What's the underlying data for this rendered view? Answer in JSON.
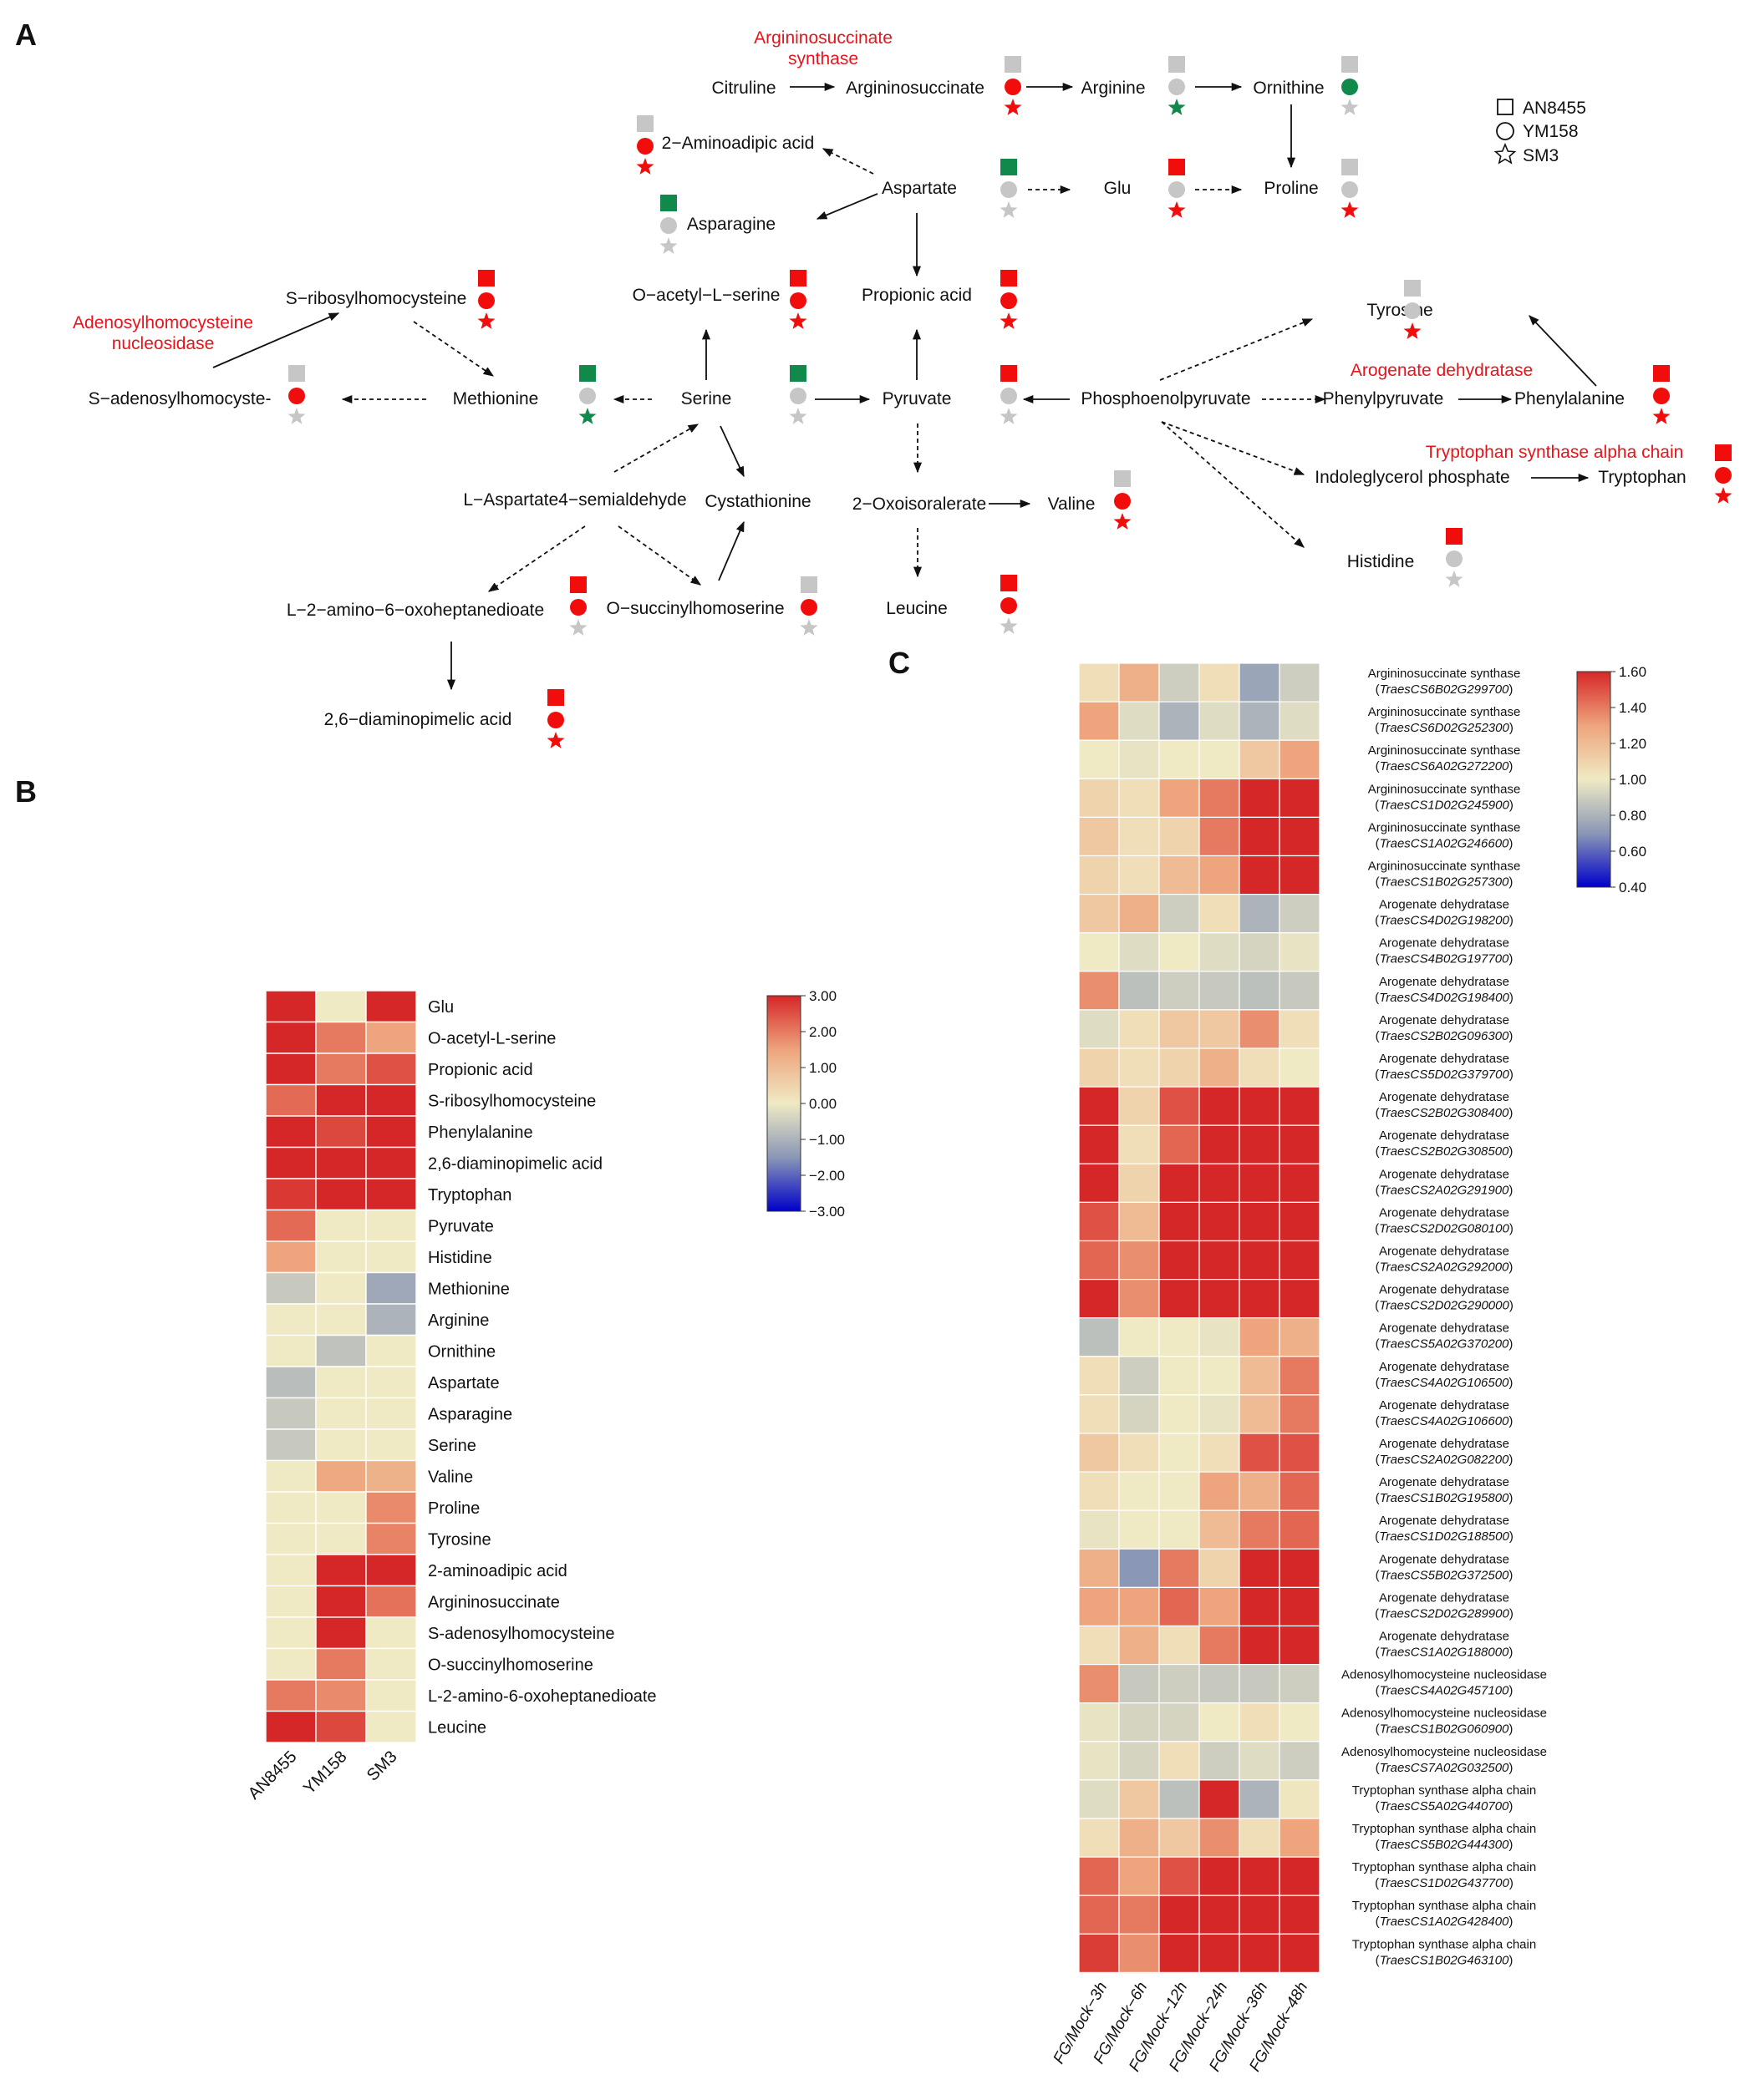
{
  "panel_labels": {
    "a": "A",
    "b": "B",
    "c": "C"
  },
  "colors": {
    "up": "#f20d0d",
    "down": "#10894a",
    "ns": "#c6c6c6",
    "enzyme": "#e8141b"
  },
  "pathway": {
    "nodes": {
      "citruline": "Citruline",
      "argininosuccinate": "Argininosuccinate",
      "arginine": "Arginine",
      "ornithine": "Ornithine",
      "aminoadipic": "2−Aminoadipic acid",
      "aspartate": "Aspartate",
      "glu": "Glu",
      "proline": "Proline",
      "asparagine": "Asparagine",
      "sribosyl": "S−ribosylhomocysteine",
      "oacetyl": "O−acetyl−L−serine",
      "propionic": "Propionic acid",
      "tyrosine": "Tyrosine",
      "sadenosyl": "S−adenosylhomocyste-",
      "methionine": "Methionine",
      "serine": "Serine",
      "pyruvate": "Pyruvate",
      "pep": "Phosphoenolpyruvate",
      "phenylpyruvate": "Phenylpyruvate",
      "phenylalanine": "Phenylalanine",
      "asp_semialdehyde": "L−Aspartate4−semialdehyde",
      "cystathionine": "Cystathionine",
      "oxoisoralerate": "2−Oxoisoralerate",
      "valine": "Valine",
      "indoleglycerol": "Indoleglycerol phosphate",
      "tryptophan": "Tryptophan",
      "histidine": "Histidine",
      "oxoheptanedioate": "L−2−amino−6−oxoheptanedioate",
      "osuccinyl": "O−succinylhomoserine",
      "leucine": "Leucine",
      "diaminopimelic": "2,6−diaminopimelic acid"
    },
    "enzymes": {
      "as_synthase_1": "Argininosuccinate",
      "as_synthase_2": "synthase",
      "adenosyl_1": "Adenosylhomocysteine",
      "adenosyl_2": "nucleosidase",
      "arogenate": "Arogenate dehydratase",
      "trp_synthase": "Tryptophan synthase alpha chain"
    },
    "legend": [
      {
        "shape": "square",
        "label": "AN8455"
      },
      {
        "shape": "circle",
        "label": "YM158"
      },
      {
        "shape": "star",
        "label": "SM3"
      }
    ],
    "markers": [
      {
        "node": "argininosuccinate",
        "AN8455": "ns",
        "YM158": "up",
        "SM3": "up"
      },
      {
        "node": "arginine",
        "AN8455": "ns",
        "YM158": "ns",
        "SM3": "down"
      },
      {
        "node": "ornithine",
        "AN8455": "ns",
        "YM158": "down",
        "SM3": "ns"
      },
      {
        "node": "aminoadipic",
        "AN8455": "ns",
        "YM158": "up",
        "SM3": "up"
      },
      {
        "node": "aspartate",
        "AN8455": "down",
        "YM158": "ns",
        "SM3": "ns"
      },
      {
        "node": "glu",
        "AN8455": "up",
        "YM158": "ns",
        "SM3": "up"
      },
      {
        "node": "proline",
        "AN8455": "ns",
        "YM158": "ns",
        "SM3": "up"
      },
      {
        "node": "asparagine",
        "AN8455": "down",
        "YM158": "ns",
        "SM3": "ns"
      },
      {
        "node": "sribosyl",
        "AN8455": "up",
        "YM158": "up",
        "SM3": "up"
      },
      {
        "node": "oacetyl",
        "AN8455": "up",
        "YM158": "up",
        "SM3": "up"
      },
      {
        "node": "propionic",
        "AN8455": "up",
        "YM158": "up",
        "SM3": "up"
      },
      {
        "node": "tyrosine",
        "AN8455": "ns",
        "YM158": "ns",
        "SM3": "up"
      },
      {
        "node": "sadenosyl",
        "AN8455": "ns",
        "YM158": "up",
        "SM3": "ns"
      },
      {
        "node": "methionine",
        "AN8455": "down",
        "YM158": "ns",
        "SM3": "down"
      },
      {
        "node": "serine",
        "AN8455": "down",
        "YM158": "ns",
        "SM3": "ns"
      },
      {
        "node": "pyruvate",
        "AN8455": "up",
        "YM158": "ns",
        "SM3": "ns"
      },
      {
        "node": "phenylalanine",
        "AN8455": "up",
        "YM158": "up",
        "SM3": "up"
      },
      {
        "node": "tryptophan",
        "AN8455": "up",
        "YM158": "up",
        "SM3": "up"
      },
      {
        "node": "valine",
        "AN8455": "ns",
        "YM158": "up",
        "SM3": "up"
      },
      {
        "node": "histidine",
        "AN8455": "up",
        "YM158": "ns",
        "SM3": "ns"
      },
      {
        "node": "oxoheptanedioate",
        "AN8455": "up",
        "YM158": "up",
        "SM3": "ns"
      },
      {
        "node": "osuccinyl",
        "AN8455": "ns",
        "YM158": "up",
        "SM3": "ns"
      },
      {
        "node": "leucine",
        "AN8455": "up",
        "YM158": "up",
        "SM3": "ns"
      },
      {
        "node": "diaminopimelic",
        "AN8455": "up",
        "YM158": "up",
        "SM3": "up"
      }
    ]
  },
  "chart_data": [
    {
      "type": "heatmap",
      "panel": "B",
      "columns": [
        "AN8455",
        "YM158",
        "SM3"
      ],
      "rows": [
        "Glu",
        "O-acetyl-L-serine",
        "Propionic acid",
        "S-ribosylhomocysteine",
        "Phenylalanine",
        "2,6-diaminopimelic acid",
        "Tryptophan",
        "Pyruvate",
        "Histidine",
        "Methionine",
        "Arginine",
        "Ornithine",
        "Aspartate",
        "Asparagine",
        "Serine",
        "Valine",
        "Proline",
        "Tyrosine",
        "2-aminoadipic acid",
        "Argininosuccinate",
        "S-adenosylhomocysteine",
        "O-succinylhomoserine",
        "L-2-amino-6-oxoheptanedioate",
        "Leucine"
      ],
      "values": [
        [
          3.0,
          0.0,
          3.0
        ],
        [
          3.0,
          2.0,
          1.5
        ],
        [
          3.0,
          2.0,
          2.5
        ],
        [
          2.2,
          3.0,
          3.0
        ],
        [
          3.0,
          2.6,
          3.0
        ],
        [
          3.0,
          3.0,
          3.0
        ],
        [
          2.8,
          3.0,
          3.0
        ],
        [
          2.2,
          0.0,
          0.0
        ],
        [
          1.5,
          0.0,
          0.0
        ],
        [
          -0.6,
          0.0,
          -1.2
        ],
        [
          0.0,
          0.0,
          -1.0
        ],
        [
          0.0,
          -0.7,
          0.0
        ],
        [
          -0.8,
          0.0,
          0.0
        ],
        [
          -0.6,
          0.0,
          0.0
        ],
        [
          -0.6,
          0.0,
          0.0
        ],
        [
          0.0,
          1.4,
          1.2
        ],
        [
          0.0,
          0.0,
          1.8
        ],
        [
          0.0,
          0.0,
          1.9
        ],
        [
          0.0,
          3.0,
          3.0
        ],
        [
          0.0,
          3.0,
          2.1
        ],
        [
          0.0,
          3.0,
          0.0
        ],
        [
          0.0,
          2.0,
          0.0
        ],
        [
          2.0,
          1.8,
          0.0
        ],
        [
          3.0,
          2.6,
          0.0
        ]
      ],
      "colorbar": {
        "min": -3.0,
        "max": 3.0,
        "ticks": [
          "3.00",
          "2.00",
          "1.00",
          "0.00",
          "−1.00",
          "−2.00",
          "−3.00"
        ]
      }
    },
    {
      "type": "heatmap",
      "panel": "C",
      "columns": [
        "FG/Mock−3h",
        "FG/Mock−6h",
        "FG/Mock−12h",
        "FG/Mock−24h",
        "FG/Mock−36h",
        "FG/Mock−48h"
      ],
      "rows": [
        {
          "name": "Argininosuccinate synthase",
          "gene": "TraesCS6B02G299700"
        },
        {
          "name": "Argininosuccinate synthase",
          "gene": "TraesCS6D02G252300"
        },
        {
          "name": "Argininosuccinate synthase",
          "gene": "TraesCS6A02G272200"
        },
        {
          "name": "Argininosuccinate synthase",
          "gene": "TraesCS1D02G245900"
        },
        {
          "name": "Argininosuccinate synthase",
          "gene": "TraesCS1A02G246600"
        },
        {
          "name": "Argininosuccinate synthase",
          "gene": "TraesCS1B02G257300"
        },
        {
          "name": "Arogenate dehydratase",
          "gene": "TraesCS4D02G198200"
        },
        {
          "name": "Arogenate dehydratase",
          "gene": "TraesCS4B02G197700"
        },
        {
          "name": "Arogenate dehydratase",
          "gene": "TraesCS4D02G198400"
        },
        {
          "name": "Arogenate dehydratase",
          "gene": "TraesCS2B02G096300"
        },
        {
          "name": "Arogenate dehydratase",
          "gene": "TraesCS5D02G379700"
        },
        {
          "name": "Arogenate dehydratase",
          "gene": "TraesCS2B02G308400"
        },
        {
          "name": "Arogenate dehydratase",
          "gene": "TraesCS2B02G308500"
        },
        {
          "name": "Arogenate dehydratase",
          "gene": "TraesCS2A02G291900"
        },
        {
          "name": "Arogenate dehydratase",
          "gene": "TraesCS2D02G080100"
        },
        {
          "name": "Arogenate dehydratase",
          "gene": "TraesCS2A02G292000"
        },
        {
          "name": "Arogenate dehydratase",
          "gene": "TraesCS2D02G290000"
        },
        {
          "name": "Arogenate dehydratase",
          "gene": "TraesCS5A02G370200"
        },
        {
          "name": "Arogenate dehydratase",
          "gene": "TraesCS4A02G106500"
        },
        {
          "name": "Arogenate dehydratase",
          "gene": "TraesCS4A02G106600"
        },
        {
          "name": "Arogenate dehydratase",
          "gene": "TraesCS2A02G082200"
        },
        {
          "name": "Arogenate dehydratase",
          "gene": "TraesCS1B02G195800"
        },
        {
          "name": "Arogenate dehydratase",
          "gene": "TraesCS1D02G188500"
        },
        {
          "name": "Arogenate dehydratase",
          "gene": "TraesCS5B02G372500"
        },
        {
          "name": "Arogenate dehydratase",
          "gene": "TraesCS2D02G289900"
        },
        {
          "name": "Arogenate dehydratase",
          "gene": "TraesCS1A02G188000"
        },
        {
          "name": "Adenosylhomocysteine nucleosidase",
          "gene": "TraesCS4A02G457100"
        },
        {
          "name": "Adenosylhomocysteine nucleosidase",
          "gene": "TraesCS1B02G060900"
        },
        {
          "name": "Adenosylhomocysteine nucleosidase",
          "gene": "TraesCS7A02G032500"
        },
        {
          "name": "Tryptophan synthase alpha chain",
          "gene": "TraesCS5A02G440700"
        },
        {
          "name": "Tryptophan synthase alpha chain",
          "gene": "TraesCS5B02G444300"
        },
        {
          "name": "Tryptophan synthase alpha chain",
          "gene": "TraesCS1D02G437700"
        },
        {
          "name": "Tryptophan synthase alpha chain",
          "gene": "TraesCS1A02G428400"
        },
        {
          "name": "Tryptophan synthase alpha chain",
          "gene": "TraesCS1B02G463100"
        }
      ],
      "values": [
        [
          1.05,
          1.25,
          0.9,
          1.05,
          0.75,
          0.9
        ],
        [
          1.3,
          0.95,
          0.8,
          0.95,
          0.8,
          0.95
        ],
        [
          1.0,
          0.98,
          1.0,
          1.0,
          1.15,
          1.3
        ],
        [
          1.1,
          1.05,
          1.3,
          1.4,
          1.6,
          1.6
        ],
        [
          1.15,
          1.05,
          1.1,
          1.4,
          1.6,
          1.6
        ],
        [
          1.1,
          1.05,
          1.2,
          1.3,
          1.6,
          1.6
        ],
        [
          1.15,
          1.25,
          0.9,
          1.05,
          0.8,
          0.9
        ],
        [
          1.0,
          0.95,
          1.0,
          0.95,
          0.92,
          0.98
        ],
        [
          1.35,
          0.85,
          0.9,
          0.88,
          0.85,
          0.88
        ],
        [
          0.95,
          1.05,
          1.15,
          1.15,
          1.35,
          1.05
        ],
        [
          1.1,
          1.05,
          1.1,
          1.25,
          1.05,
          1.0
        ],
        [
          1.6,
          1.1,
          1.5,
          1.6,
          1.6,
          1.6
        ],
        [
          1.6,
          1.05,
          1.45,
          1.6,
          1.6,
          1.6
        ],
        [
          1.6,
          1.1,
          1.6,
          1.6,
          1.6,
          1.6
        ],
        [
          1.5,
          1.2,
          1.6,
          1.6,
          1.6,
          1.6
        ],
        [
          1.45,
          1.35,
          1.6,
          1.6,
          1.6,
          1.6
        ],
        [
          1.6,
          1.35,
          1.6,
          1.6,
          1.6,
          1.6
        ],
        [
          0.85,
          1.0,
          1.0,
          0.98,
          1.3,
          1.25
        ],
        [
          1.05,
          0.9,
          1.0,
          1.0,
          1.2,
          1.4
        ],
        [
          1.05,
          0.92,
          1.0,
          0.98,
          1.2,
          1.4
        ],
        [
          1.15,
          1.05,
          1.0,
          1.05,
          1.5,
          1.5
        ],
        [
          1.05,
          1.0,
          1.0,
          1.3,
          1.25,
          1.45
        ],
        [
          0.98,
          1.0,
          1.0,
          1.2,
          1.4,
          1.45
        ],
        [
          1.25,
          0.7,
          1.4,
          1.1,
          1.6,
          1.6
        ],
        [
          1.3,
          1.3,
          1.45,
          1.3,
          1.6,
          1.6
        ],
        [
          1.05,
          1.25,
          1.05,
          1.4,
          1.6,
          1.6
        ],
        [
          1.35,
          0.88,
          0.9,
          0.88,
          0.88,
          0.9
        ],
        [
          0.98,
          0.92,
          0.92,
          1.0,
          1.05,
          1.0
        ],
        [
          0.98,
          0.92,
          1.05,
          0.9,
          0.95,
          0.9
        ],
        [
          0.95,
          1.15,
          0.85,
          1.6,
          0.8,
          1.02
        ],
        [
          1.05,
          1.25,
          1.15,
          1.35,
          1.05,
          1.3
        ],
        [
          1.45,
          1.3,
          1.5,
          1.6,
          1.6,
          1.6
        ],
        [
          1.45,
          1.4,
          1.6,
          1.6,
          1.6,
          1.6
        ],
        [
          1.55,
          1.35,
          1.6,
          1.6,
          1.6,
          1.6
        ]
      ],
      "colorbar": {
        "min": 0.4,
        "max": 1.6,
        "ticks": [
          "1.60",
          "1.40",
          "1.20",
          "1.00",
          "0.80",
          "0.60",
          "0.40"
        ]
      }
    }
  ]
}
